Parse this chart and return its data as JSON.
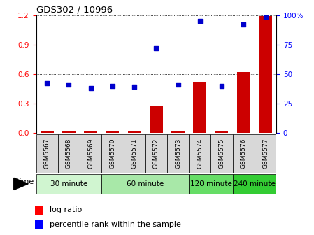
{
  "title": "GDS302 / 10996",
  "samples": [
    "GSM5567",
    "GSM5568",
    "GSM5569",
    "GSM5570",
    "GSM5571",
    "GSM5572",
    "GSM5573",
    "GSM5574",
    "GSM5575",
    "GSM5576",
    "GSM5577"
  ],
  "log_ratio": [
    0.01,
    0.01,
    0.01,
    0.01,
    0.01,
    0.27,
    0.01,
    0.52,
    0.01,
    0.62,
    1.19
  ],
  "percentile": [
    42,
    41,
    38,
    40,
    39,
    72,
    41,
    95,
    40,
    92,
    99
  ],
  "groups": [
    {
      "label": "30 minute",
      "start": 0,
      "end": 2,
      "color": "#d0f5d0"
    },
    {
      "label": "60 minute",
      "start": 3,
      "end": 6,
      "color": "#a8e8a8"
    },
    {
      "label": "120 minute",
      "start": 7,
      "end": 8,
      "color": "#66dd66"
    },
    {
      "label": "240 minute",
      "start": 9,
      "end": 10,
      "color": "#33cc33"
    }
  ],
  "bar_color": "#cc0000",
  "dot_color": "#0000cc",
  "ylim_left": [
    0,
    1.2
  ],
  "ylim_right": [
    0,
    100
  ],
  "yticks_left": [
    0,
    0.3,
    0.6,
    0.9,
    1.2
  ],
  "yticks_right": [
    0,
    25,
    50,
    75,
    100
  ],
  "label_log": "log ratio",
  "label_pct": "percentile rank within the sample",
  "sample_bg": "#d8d8d8"
}
